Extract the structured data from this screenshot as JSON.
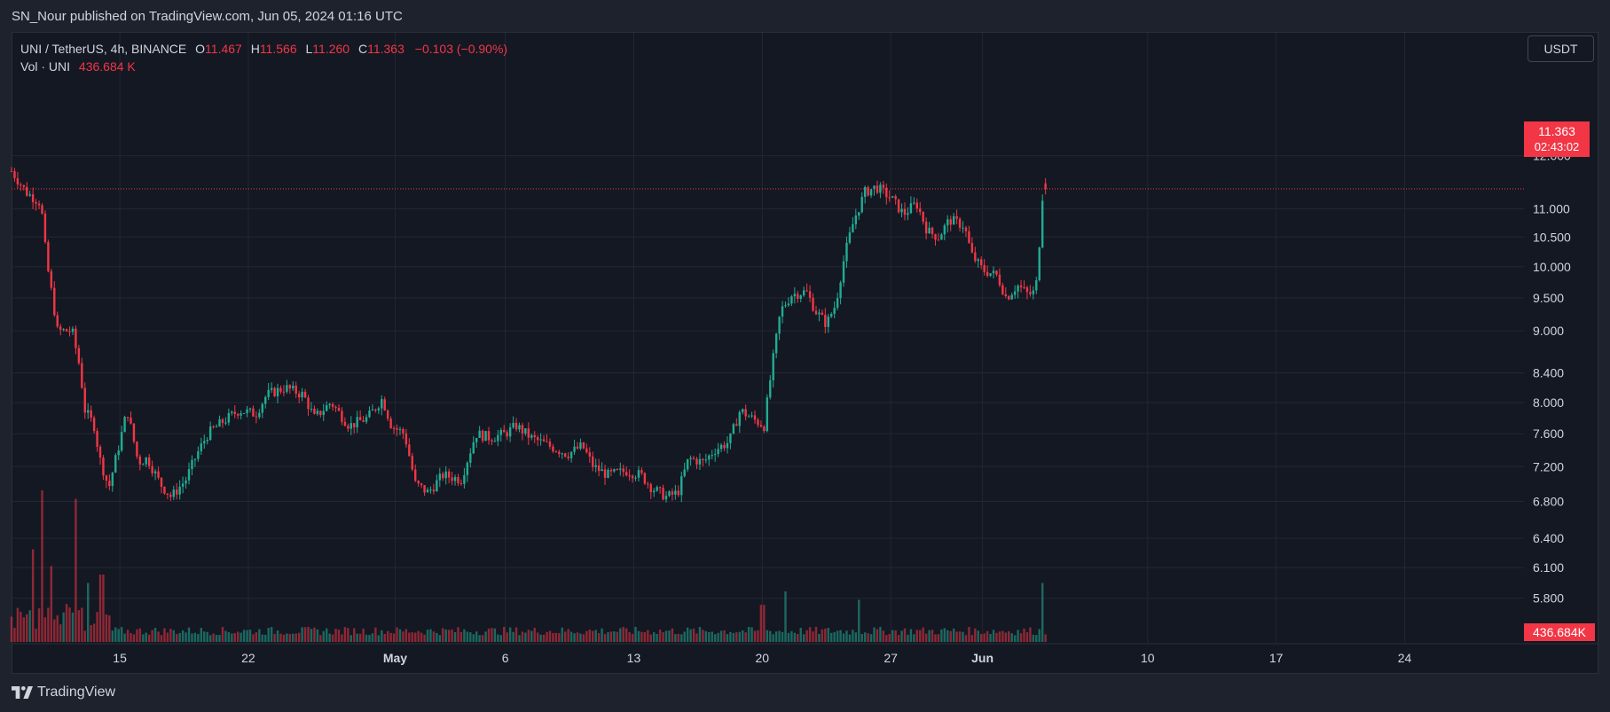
{
  "header": {
    "published": "SN_Nour published on TradingView.com, Jun 05, 2024 01:16 UTC"
  },
  "legend": {
    "symbol": "UNI / TetherUS, 4h, BINANCE",
    "open_label": "O",
    "open": "11.467",
    "high_label": "H",
    "high": "11.566",
    "low_label": "L",
    "low": "11.260",
    "close_label": "C",
    "close": "11.363",
    "change": "−0.103 (−0.90%)",
    "vol_label": "Vol · UNI",
    "vol_value": "436.684 K"
  },
  "currency_button": "USDT",
  "last_price": {
    "price": "11.363",
    "countdown": "02:43:02"
  },
  "volume_badge": "436.684K",
  "footer": {
    "brand": "TradingView",
    "logo_icon": "tradingview-logo-icon"
  },
  "colors": {
    "up": "#22ab94",
    "down": "#f23645",
    "grid": "#232733",
    "text": "#d1d4dc"
  },
  "chart_data": {
    "type": "candlestick",
    "title": "UNI / TetherUS, 4h, BINANCE",
    "price_scale": "log",
    "ylim": [
      5.55,
      14.2
    ],
    "y_ticks": [
      "12.000",
      "11.000",
      "10.500",
      "10.000",
      "9.500",
      "9.000",
      "8.400",
      "8.000",
      "7.600",
      "7.200",
      "6.800",
      "6.400",
      "6.100",
      "5.800"
    ],
    "x_tick_labels": [
      {
        "label": "15",
        "day": 15
      },
      {
        "label": "22",
        "day": 22
      },
      {
        "label": "May",
        "day": 30
      },
      {
        "label": "6",
        "day": 36
      },
      {
        "label": "13",
        "day": 43
      },
      {
        "label": "20",
        "day": 50
      },
      {
        "label": "27",
        "day": 57
      },
      {
        "label": "Jun",
        "day": 62
      },
      {
        "label": "10",
        "day": 71
      },
      {
        "label": "17",
        "day": 78
      },
      {
        "label": "24",
        "day": 85
      }
    ],
    "x_range_days": [
      9.1,
      91.5
    ],
    "last_bar_day": 65.5,
    "bars_per_day": 6,
    "price_path": [
      [
        9.1,
        11.7
      ],
      [
        9.9,
        11.3
      ],
      [
        10.7,
        11.1
      ],
      [
        11.0,
        10.1
      ],
      [
        11.6,
        9.0
      ],
      [
        12.4,
        9.0
      ],
      [
        12.8,
        8.5
      ],
      [
        13.1,
        7.9
      ],
      [
        13.6,
        7.7
      ],
      [
        13.9,
        7.3
      ],
      [
        14.4,
        6.95
      ],
      [
        15.0,
        7.5
      ],
      [
        15.4,
        7.9
      ],
      [
        16.0,
        7.25
      ],
      [
        16.5,
        7.3
      ],
      [
        17.2,
        7.0
      ],
      [
        17.8,
        6.85
      ],
      [
        18.6,
        7.05
      ],
      [
        19.2,
        7.35
      ],
      [
        19.8,
        7.6
      ],
      [
        20.6,
        7.75
      ],
      [
        21.5,
        7.9
      ],
      [
        22.4,
        7.85
      ],
      [
        23.0,
        8.1
      ],
      [
        24.0,
        8.2
      ],
      [
        25.0,
        8.1
      ],
      [
        25.6,
        7.8
      ],
      [
        26.5,
        8.0
      ],
      [
        27.5,
        7.7
      ],
      [
        28.5,
        7.8
      ],
      [
        29.3,
        8.05
      ],
      [
        29.8,
        7.7
      ],
      [
        30.5,
        7.6
      ],
      [
        31.1,
        7.0
      ],
      [
        31.8,
        6.9
      ],
      [
        32.6,
        7.1
      ],
      [
        33.6,
        7.05
      ],
      [
        34.4,
        7.6
      ],
      [
        35.2,
        7.55
      ],
      [
        36.0,
        7.6
      ],
      [
        36.6,
        7.7
      ],
      [
        37.4,
        7.55
      ],
      [
        38.4,
        7.45
      ],
      [
        39.4,
        7.35
      ],
      [
        40.2,
        7.45
      ],
      [
        40.8,
        7.2
      ],
      [
        41.6,
        7.1
      ],
      [
        42.6,
        7.15
      ],
      [
        43.4,
        7.1
      ],
      [
        44.0,
        6.95
      ],
      [
        44.8,
        6.85
      ],
      [
        45.4,
        6.9
      ],
      [
        46.0,
        7.3
      ],
      [
        46.8,
        7.25
      ],
      [
        47.4,
        7.4
      ],
      [
        48.2,
        7.5
      ],
      [
        48.8,
        7.9
      ],
      [
        49.4,
        7.8
      ],
      [
        50.1,
        7.7
      ],
      [
        50.6,
        8.6
      ],
      [
        51.0,
        9.3
      ],
      [
        51.6,
        9.55
      ],
      [
        52.4,
        9.6
      ],
      [
        52.9,
        9.3
      ],
      [
        53.5,
        9.1
      ],
      [
        54.0,
        9.4
      ],
      [
        54.5,
        10.2
      ],
      [
        55.0,
        10.8
      ],
      [
        55.6,
        11.3
      ],
      [
        56.2,
        11.4
      ],
      [
        57.0,
        11.2
      ],
      [
        57.7,
        10.9
      ],
      [
        58.4,
        11.1
      ],
      [
        59.0,
        10.6
      ],
      [
        59.6,
        10.5
      ],
      [
        60.2,
        10.8
      ],
      [
        61.0,
        10.7
      ],
      [
        61.4,
        10.2
      ],
      [
        62.0,
        9.95
      ],
      [
        62.8,
        9.85
      ],
      [
        63.3,
        9.5
      ],
      [
        63.9,
        9.7
      ],
      [
        64.5,
        9.55
      ],
      [
        64.9,
        9.6
      ],
      [
        65.1,
        10.4
      ],
      [
        65.3,
        11.4
      ],
      [
        65.5,
        11.363
      ]
    ],
    "volume_spikes": [
      {
        "day": 10.2,
        "rel": 0.55
      },
      {
        "day": 10.7,
        "rel": 0.9
      },
      {
        "day": 11.2,
        "rel": 0.45
      },
      {
        "day": 12.6,
        "rel": 0.85
      },
      {
        "day": 13.2,
        "rel": 0.35
      },
      {
        "day": 14.0,
        "rel": 0.4
      },
      {
        "day": 50.0,
        "rel": 0.22
      },
      {
        "day": 51.2,
        "rel": 0.3
      },
      {
        "day": 55.2,
        "rel": 0.25
      },
      {
        "day": 65.2,
        "rel": 0.55
      },
      {
        "day": 65.3,
        "rel": 0.35
      }
    ],
    "last_volume": "436.684K"
  }
}
